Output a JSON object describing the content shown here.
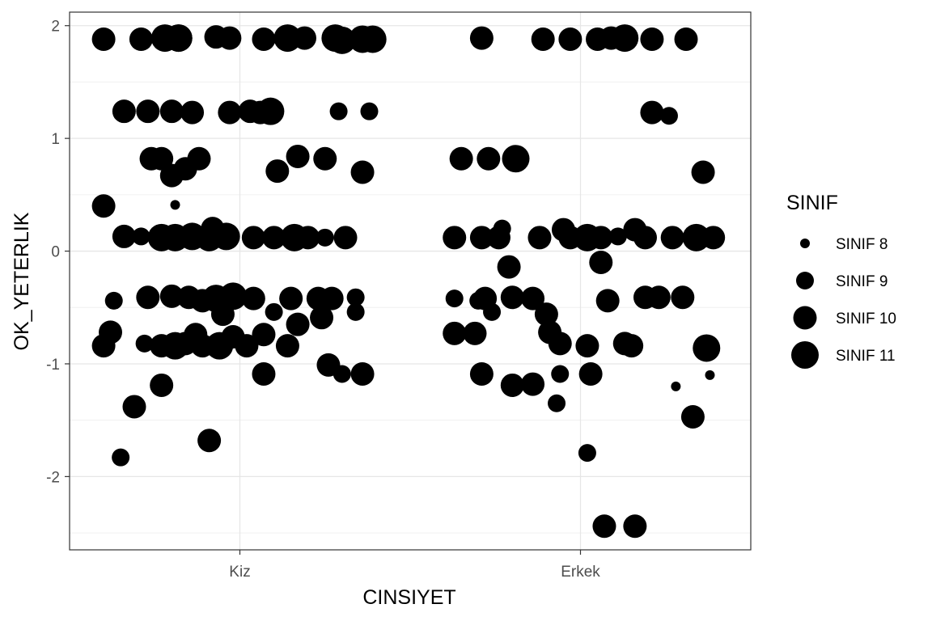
{
  "chart_data": {
    "type": "scatter",
    "xlabel": "CINSIYET",
    "ylabel": "OK_YETERLIK",
    "categories": [
      "Kiz",
      "Erkek"
    ],
    "ylim": [
      -2.65,
      2.12
    ],
    "y_ticks": [
      -2,
      -1,
      0,
      1,
      2
    ],
    "y_tick_labels": [
      "-2",
      "-1",
      "0",
      "1",
      "2"
    ],
    "grid": true,
    "point_color": "#000000",
    "jitter": true,
    "legend": {
      "title": "SINIF",
      "placement": "right",
      "entries": [
        {
          "label": "SINIF 8",
          "level": 8
        },
        {
          "label": "SINIF 9",
          "level": 9
        },
        {
          "label": "SINIF 10",
          "level": 10
        },
        {
          "label": "SINIF 11",
          "level": 11
        }
      ]
    },
    "points": [
      {
        "x": "Kiz",
        "j": -0.4,
        "y": 1.88,
        "sinif": 10
      },
      {
        "x": "Kiz",
        "j": -0.29,
        "y": 1.88,
        "sinif": 10
      },
      {
        "x": "Kiz",
        "j": -0.22,
        "y": 1.89,
        "sinif": 11
      },
      {
        "x": "Kiz",
        "j": -0.18,
        "y": 1.89,
        "sinif": 11
      },
      {
        "x": "Kiz",
        "j": -0.18,
        "y": 1.89,
        "sinif": 11
      },
      {
        "x": "Kiz",
        "j": -0.07,
        "y": 1.9,
        "sinif": 10
      },
      {
        "x": "Kiz",
        "j": -0.03,
        "y": 1.89,
        "sinif": 10
      },
      {
        "x": "Kiz",
        "j": 0.07,
        "y": 1.88,
        "sinif": 10
      },
      {
        "x": "Kiz",
        "j": 0.14,
        "y": 1.89,
        "sinif": 11
      },
      {
        "x": "Kiz",
        "j": 0.19,
        "y": 1.89,
        "sinif": 10
      },
      {
        "x": "Kiz",
        "j": 0.28,
        "y": 1.89,
        "sinif": 11
      },
      {
        "x": "Kiz",
        "j": 0.3,
        "y": 1.87,
        "sinif": 11
      },
      {
        "x": "Kiz",
        "j": 0.36,
        "y": 1.88,
        "sinif": 11
      },
      {
        "x": "Kiz",
        "j": 0.39,
        "y": 1.88,
        "sinif": 11
      },
      {
        "x": "Kiz",
        "j": -0.34,
        "y": 1.24,
        "sinif": 10
      },
      {
        "x": "Kiz",
        "j": -0.27,
        "y": 1.24,
        "sinif": 10
      },
      {
        "x": "Kiz",
        "j": -0.2,
        "y": 1.24,
        "sinif": 10
      },
      {
        "x": "Kiz",
        "j": -0.14,
        "y": 1.23,
        "sinif": 10
      },
      {
        "x": "Kiz",
        "j": -0.03,
        "y": 1.23,
        "sinif": 10
      },
      {
        "x": "Kiz",
        "j": 0.03,
        "y": 1.24,
        "sinif": 10
      },
      {
        "x": "Kiz",
        "j": 0.06,
        "y": 1.23,
        "sinif": 10
      },
      {
        "x": "Kiz",
        "j": 0.09,
        "y": 1.24,
        "sinif": 11
      },
      {
        "x": "Kiz",
        "j": 0.29,
        "y": 1.24,
        "sinif": 9
      },
      {
        "x": "Kiz",
        "j": 0.38,
        "y": 1.24,
        "sinif": 9
      },
      {
        "x": "Kiz",
        "j": -0.26,
        "y": 0.82,
        "sinif": 10
      },
      {
        "x": "Kiz",
        "j": -0.23,
        "y": 0.82,
        "sinif": 10
      },
      {
        "x": "Kiz",
        "j": -0.2,
        "y": 0.67,
        "sinif": 10
      },
      {
        "x": "Kiz",
        "j": -0.16,
        "y": 0.73,
        "sinif": 10
      },
      {
        "x": "Kiz",
        "j": -0.12,
        "y": 0.82,
        "sinif": 10
      },
      {
        "x": "Kiz",
        "j": 0.11,
        "y": 0.71,
        "sinif": 10
      },
      {
        "x": "Kiz",
        "j": 0.17,
        "y": 0.84,
        "sinif": 10
      },
      {
        "x": "Kiz",
        "j": 0.25,
        "y": 0.82,
        "sinif": 10
      },
      {
        "x": "Kiz",
        "j": 0.36,
        "y": 0.7,
        "sinif": 10
      },
      {
        "x": "Kiz",
        "j": -0.4,
        "y": 0.4,
        "sinif": 10
      },
      {
        "x": "Kiz",
        "j": -0.19,
        "y": 0.41,
        "sinif": 8
      },
      {
        "x": "Kiz",
        "j": -0.34,
        "y": 0.13,
        "sinif": 10
      },
      {
        "x": "Kiz",
        "j": -0.29,
        "y": 0.13,
        "sinif": 9
      },
      {
        "x": "Kiz",
        "j": -0.23,
        "y": 0.12,
        "sinif": 11
      },
      {
        "x": "Kiz",
        "j": -0.19,
        "y": 0.12,
        "sinif": 11
      },
      {
        "x": "Kiz",
        "j": -0.14,
        "y": 0.13,
        "sinif": 11
      },
      {
        "x": "Kiz",
        "j": -0.09,
        "y": 0.12,
        "sinif": 11
      },
      {
        "x": "Kiz",
        "j": -0.08,
        "y": 0.2,
        "sinif": 10
      },
      {
        "x": "Kiz",
        "j": -0.04,
        "y": 0.13,
        "sinif": 11
      },
      {
        "x": "Kiz",
        "j": 0.04,
        "y": 0.12,
        "sinif": 10
      },
      {
        "x": "Kiz",
        "j": 0.1,
        "y": 0.12,
        "sinif": 10
      },
      {
        "x": "Kiz",
        "j": 0.16,
        "y": 0.12,
        "sinif": 11
      },
      {
        "x": "Kiz",
        "j": 0.2,
        "y": 0.12,
        "sinif": 10
      },
      {
        "x": "Kiz",
        "j": 0.25,
        "y": 0.12,
        "sinif": 9
      },
      {
        "x": "Kiz",
        "j": 0.31,
        "y": 0.12,
        "sinif": 10
      },
      {
        "x": "Kiz",
        "j": -0.37,
        "y": -0.44,
        "sinif": 9
      },
      {
        "x": "Kiz",
        "j": -0.27,
        "y": -0.41,
        "sinif": 10
      },
      {
        "x": "Kiz",
        "j": -0.2,
        "y": -0.4,
        "sinif": 10
      },
      {
        "x": "Kiz",
        "j": -0.15,
        "y": -0.41,
        "sinif": 10
      },
      {
        "x": "Kiz",
        "j": -0.11,
        "y": -0.44,
        "sinif": 10
      },
      {
        "x": "Kiz",
        "j": -0.07,
        "y": -0.42,
        "sinif": 11
      },
      {
        "x": "Kiz",
        "j": -0.05,
        "y": -0.56,
        "sinif": 10
      },
      {
        "x": "Kiz",
        "j": -0.02,
        "y": -0.4,
        "sinif": 11
      },
      {
        "x": "Kiz",
        "j": 0.04,
        "y": -0.42,
        "sinif": 10
      },
      {
        "x": "Kiz",
        "j": 0.1,
        "y": -0.54,
        "sinif": 9
      },
      {
        "x": "Kiz",
        "j": 0.15,
        "y": -0.42,
        "sinif": 10
      },
      {
        "x": "Kiz",
        "j": 0.23,
        "y": -0.42,
        "sinif": 10
      },
      {
        "x": "Kiz",
        "j": 0.27,
        "y": -0.42,
        "sinif": 10
      },
      {
        "x": "Kiz",
        "j": 0.34,
        "y": -0.41,
        "sinif": 9
      },
      {
        "x": "Kiz",
        "j": 0.34,
        "y": -0.54,
        "sinif": 9
      },
      {
        "x": "Kiz",
        "j": -0.38,
        "y": -0.72,
        "sinif": 10
      },
      {
        "x": "Kiz",
        "j": -0.4,
        "y": -0.84,
        "sinif": 10
      },
      {
        "x": "Kiz",
        "j": -0.28,
        "y": -0.82,
        "sinif": 9
      },
      {
        "x": "Kiz",
        "j": -0.23,
        "y": -0.84,
        "sinif": 10
      },
      {
        "x": "Kiz",
        "j": -0.19,
        "y": -0.84,
        "sinif": 11
      },
      {
        "x": "Kiz",
        "j": -0.16,
        "y": -0.82,
        "sinif": 10
      },
      {
        "x": "Kiz",
        "j": -0.13,
        "y": -0.74,
        "sinif": 10
      },
      {
        "x": "Kiz",
        "j": -0.11,
        "y": -0.84,
        "sinif": 10
      },
      {
        "x": "Kiz",
        "j": -0.06,
        "y": -0.84,
        "sinif": 11
      },
      {
        "x": "Kiz",
        "j": -0.02,
        "y": -0.76,
        "sinif": 10
      },
      {
        "x": "Kiz",
        "j": 0.02,
        "y": -0.84,
        "sinif": 10
      },
      {
        "x": "Kiz",
        "j": 0.07,
        "y": -0.74,
        "sinif": 10
      },
      {
        "x": "Kiz",
        "j": 0.14,
        "y": -0.84,
        "sinif": 10
      },
      {
        "x": "Kiz",
        "j": 0.17,
        "y": -0.65,
        "sinif": 10
      },
      {
        "x": "Kiz",
        "j": 0.24,
        "y": -0.59,
        "sinif": 10
      },
      {
        "x": "Kiz",
        "j": -0.35,
        "y": -1.83,
        "sinif": 9
      },
      {
        "x": "Kiz",
        "j": -0.31,
        "y": -1.38,
        "sinif": 10
      },
      {
        "x": "Kiz",
        "j": -0.23,
        "y": -1.19,
        "sinif": 10
      },
      {
        "x": "Kiz",
        "j": -0.09,
        "y": -1.68,
        "sinif": 10
      },
      {
        "x": "Kiz",
        "j": 0.07,
        "y": -1.09,
        "sinif": 10
      },
      {
        "x": "Kiz",
        "j": 0.26,
        "y": -1.01,
        "sinif": 10
      },
      {
        "x": "Kiz",
        "j": 0.3,
        "y": -1.09,
        "sinif": 9
      },
      {
        "x": "Kiz",
        "j": 0.36,
        "y": -1.09,
        "sinif": 10
      },
      {
        "x": "Erkek",
        "j": -0.29,
        "y": 1.89,
        "sinif": 10
      },
      {
        "x": "Erkek",
        "j": -0.11,
        "y": 1.88,
        "sinif": 10
      },
      {
        "x": "Erkek",
        "j": -0.03,
        "y": 1.88,
        "sinif": 10
      },
      {
        "x": "Erkek",
        "j": 0.05,
        "y": 1.88,
        "sinif": 10
      },
      {
        "x": "Erkek",
        "j": 0.09,
        "y": 1.89,
        "sinif": 10
      },
      {
        "x": "Erkek",
        "j": 0.13,
        "y": 1.89,
        "sinif": 11
      },
      {
        "x": "Erkek",
        "j": 0.21,
        "y": 1.88,
        "sinif": 10
      },
      {
        "x": "Erkek",
        "j": 0.31,
        "y": 1.88,
        "sinif": 10
      },
      {
        "x": "Erkek",
        "j": 0.21,
        "y": 1.23,
        "sinif": 10
      },
      {
        "x": "Erkek",
        "j": 0.26,
        "y": 1.2,
        "sinif": 9
      },
      {
        "x": "Erkek",
        "j": -0.35,
        "y": 0.82,
        "sinif": 10
      },
      {
        "x": "Erkek",
        "j": -0.27,
        "y": 0.82,
        "sinif": 10
      },
      {
        "x": "Erkek",
        "j": -0.19,
        "y": 0.82,
        "sinif": 11
      },
      {
        "x": "Erkek",
        "j": 0.36,
        "y": 0.7,
        "sinif": 10
      },
      {
        "x": "Erkek",
        "j": -0.37,
        "y": 0.12,
        "sinif": 10
      },
      {
        "x": "Erkek",
        "j": -0.29,
        "y": 0.12,
        "sinif": 10
      },
      {
        "x": "Erkek",
        "j": -0.24,
        "y": 0.12,
        "sinif": 10
      },
      {
        "x": "Erkek",
        "j": -0.23,
        "y": 0.2,
        "sinif": 9
      },
      {
        "x": "Erkek",
        "j": -0.12,
        "y": 0.12,
        "sinif": 10
      },
      {
        "x": "Erkek",
        "j": -0.05,
        "y": 0.19,
        "sinif": 10
      },
      {
        "x": "Erkek",
        "j": -0.03,
        "y": 0.12,
        "sinif": 10
      },
      {
        "x": "Erkek",
        "j": 0.02,
        "y": 0.12,
        "sinif": 11
      },
      {
        "x": "Erkek",
        "j": 0.06,
        "y": 0.12,
        "sinif": 10
      },
      {
        "x": "Erkek",
        "j": 0.11,
        "y": 0.13,
        "sinif": 9
      },
      {
        "x": "Erkek",
        "j": 0.16,
        "y": 0.19,
        "sinif": 10
      },
      {
        "x": "Erkek",
        "j": 0.19,
        "y": 0.12,
        "sinif": 10
      },
      {
        "x": "Erkek",
        "j": 0.27,
        "y": 0.12,
        "sinif": 10
      },
      {
        "x": "Erkek",
        "j": 0.34,
        "y": 0.12,
        "sinif": 11
      },
      {
        "x": "Erkek",
        "j": 0.39,
        "y": 0.12,
        "sinif": 10
      },
      {
        "x": "Erkek",
        "j": -0.37,
        "y": -0.42,
        "sinif": 9
      },
      {
        "x": "Erkek",
        "j": -0.3,
        "y": -0.44,
        "sinif": 9
      },
      {
        "x": "Erkek",
        "j": -0.28,
        "y": -0.42,
        "sinif": 10
      },
      {
        "x": "Erkek",
        "j": -0.26,
        "y": -0.54,
        "sinif": 9
      },
      {
        "x": "Erkek",
        "j": -0.21,
        "y": -0.14,
        "sinif": 10
      },
      {
        "x": "Erkek",
        "j": -0.2,
        "y": -0.41,
        "sinif": 10
      },
      {
        "x": "Erkek",
        "j": -0.14,
        "y": -0.42,
        "sinif": 10
      },
      {
        "x": "Erkek",
        "j": -0.1,
        "y": -0.56,
        "sinif": 10
      },
      {
        "x": "Erkek",
        "j": 0.06,
        "y": -0.1,
        "sinif": 10
      },
      {
        "x": "Erkek",
        "j": 0.08,
        "y": -0.44,
        "sinif": 10
      },
      {
        "x": "Erkek",
        "j": 0.19,
        "y": -0.41,
        "sinif": 10
      },
      {
        "x": "Erkek",
        "j": 0.23,
        "y": -0.41,
        "sinif": 10
      },
      {
        "x": "Erkek",
        "j": 0.3,
        "y": -0.41,
        "sinif": 10
      },
      {
        "x": "Erkek",
        "j": -0.37,
        "y": -0.73,
        "sinif": 10
      },
      {
        "x": "Erkek",
        "j": -0.31,
        "y": -0.73,
        "sinif": 10
      },
      {
        "x": "Erkek",
        "j": -0.09,
        "y": -0.72,
        "sinif": 10
      },
      {
        "x": "Erkek",
        "j": -0.06,
        "y": -0.82,
        "sinif": 10
      },
      {
        "x": "Erkek",
        "j": 0.02,
        "y": -0.84,
        "sinif": 10
      },
      {
        "x": "Erkek",
        "j": 0.13,
        "y": -0.82,
        "sinif": 10
      },
      {
        "x": "Erkek",
        "j": 0.15,
        "y": -0.84,
        "sinif": 10
      },
      {
        "x": "Erkek",
        "j": 0.37,
        "y": -0.86,
        "sinif": 11
      },
      {
        "x": "Erkek",
        "j": -0.29,
        "y": -1.09,
        "sinif": 10
      },
      {
        "x": "Erkek",
        "j": -0.2,
        "y": -1.19,
        "sinif": 10
      },
      {
        "x": "Erkek",
        "j": -0.14,
        "y": -1.18,
        "sinif": 10
      },
      {
        "x": "Erkek",
        "j": -0.06,
        "y": -1.09,
        "sinif": 9
      },
      {
        "x": "Erkek",
        "j": 0.03,
        "y": -1.09,
        "sinif": 10
      },
      {
        "x": "Erkek",
        "j": -0.07,
        "y": -1.35,
        "sinif": 9
      },
      {
        "x": "Erkek",
        "j": 0.28,
        "y": -1.2,
        "sinif": 8
      },
      {
        "x": "Erkek",
        "j": 0.38,
        "y": -1.1,
        "sinif": 8
      },
      {
        "x": "Erkek",
        "j": 0.33,
        "y": -1.47,
        "sinif": 10
      },
      {
        "x": "Erkek",
        "j": 0.02,
        "y": -1.79,
        "sinif": 9
      },
      {
        "x": "Erkek",
        "j": 0.07,
        "y": -2.44,
        "sinif": 10
      },
      {
        "x": "Erkek",
        "j": 0.16,
        "y": -2.44,
        "sinif": 10
      }
    ]
  }
}
